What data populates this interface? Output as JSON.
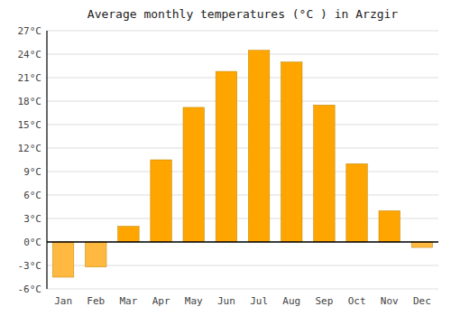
{
  "chart_data": {
    "type": "bar",
    "title": "Average monthly temperatures (°C ) in Arzgir",
    "categories": [
      "Jan",
      "Feb",
      "Mar",
      "Apr",
      "May",
      "Jun",
      "Jul",
      "Aug",
      "Sep",
      "Oct",
      "Nov",
      "Dec"
    ],
    "values": [
      -4.5,
      -3.2,
      2.0,
      10.5,
      17.2,
      21.8,
      24.5,
      23.0,
      17.5,
      10.0,
      4.0,
      -0.7
    ],
    "colors": [
      "#FFB840",
      "#FFB840",
      "#FFA500",
      "#FFA500",
      "#FFA500",
      "#FFA500",
      "#FFA500",
      "#FFA500",
      "#FFA500",
      "#FFA500",
      "#FFA500",
      "#FFB840"
    ],
    "ylim": [
      -6,
      27
    ],
    "yticks": [
      {
        "value": -6,
        "label": "-6°C"
      },
      {
        "value": -3,
        "label": "-3°C"
      },
      {
        "value": 0,
        "label": "0°C"
      },
      {
        "value": 3,
        "label": "3°C"
      },
      {
        "value": 6,
        "label": "6°C"
      },
      {
        "value": 9,
        "label": "9°C"
      },
      {
        "value": 12,
        "label": "12°C"
      },
      {
        "value": 15,
        "label": "15°C"
      },
      {
        "value": 18,
        "label": "18°C"
      },
      {
        "value": 21,
        "label": "21°C"
      },
      {
        "value": 24,
        "label": "24°C"
      },
      {
        "value": 27,
        "label": "27°C"
      }
    ],
    "grid": true
  }
}
